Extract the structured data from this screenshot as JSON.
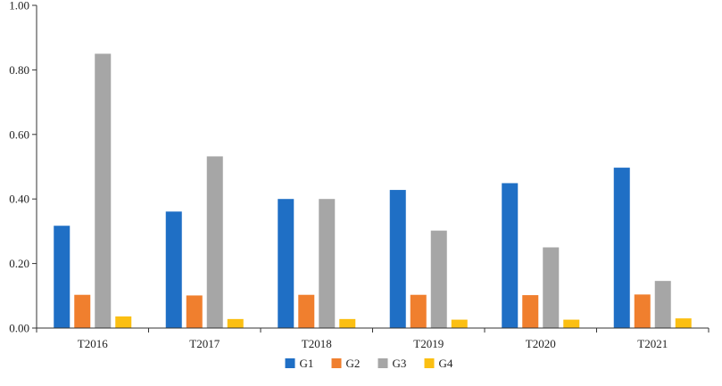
{
  "chart_data": {
    "type": "bar",
    "title": "",
    "xlabel": "",
    "ylabel": "",
    "categories": [
      "T2016",
      "T2017",
      "T2018",
      "T2019",
      "T2020",
      "T2021"
    ],
    "series": [
      {
        "name": "G1",
        "color": "#1f6fc5",
        "values": [
          0.317,
          0.361,
          0.4,
          0.428,
          0.449,
          0.497
        ]
      },
      {
        "name": "G2",
        "color": "#f07f2e",
        "values": [
          0.103,
          0.101,
          0.103,
          0.103,
          0.102,
          0.104
        ]
      },
      {
        "name": "G3",
        "color": "#a6a6a6",
        "values": [
          0.85,
          0.532,
          0.4,
          0.302,
          0.25,
          0.146
        ]
      },
      {
        "name": "G4",
        "color": "#fbbf12",
        "values": [
          0.036,
          0.028,
          0.028,
          0.026,
          0.026,
          0.03
        ]
      }
    ],
    "ylim": [
      0,
      1.0
    ],
    "yticks": [
      "0.00",
      "0.20",
      "0.40",
      "0.60",
      "0.80",
      "1.00"
    ],
    "ytick_values": [
      0,
      0.2,
      0.4,
      0.6,
      0.8,
      1.0
    ],
    "grid": false,
    "legend_position": "bottom-center"
  }
}
